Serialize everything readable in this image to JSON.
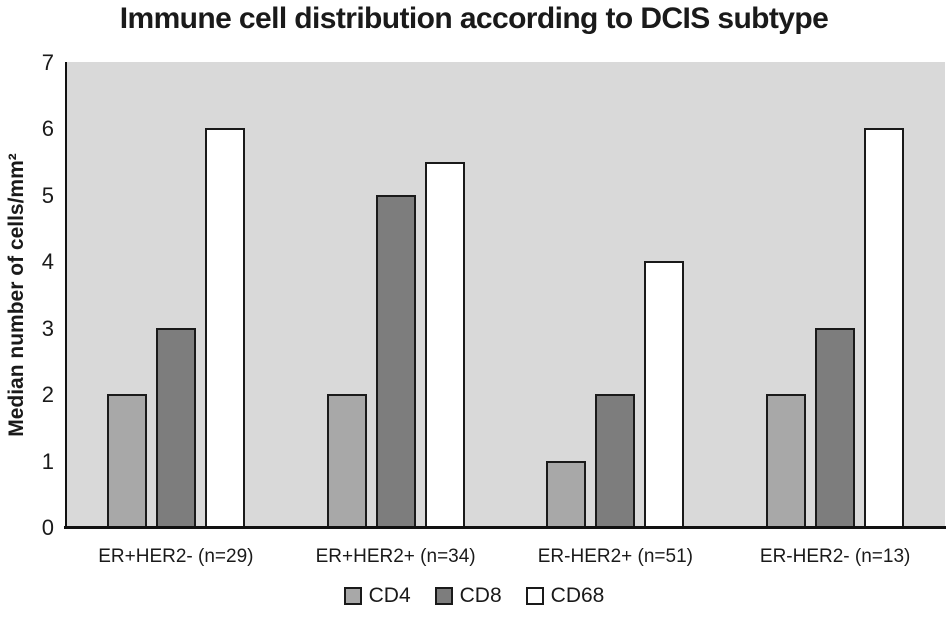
{
  "chart_data": {
    "type": "bar",
    "title": "Immune cell distribution according to DCIS subtype",
    "xlabel": "",
    "ylabel": "Median number of cells/mm²",
    "ylim": [
      0,
      7
    ],
    "yticks": [
      0,
      1,
      2,
      3,
      4,
      5,
      6,
      7
    ],
    "grid": false,
    "legend_position": "bottom-center",
    "plot_background": "#d9d9d9",
    "bar_border_color": "#1a1a1a",
    "categories": [
      "ER+HER2- (n=29)",
      "ER+HER2+ (n=34)",
      "ER-HER2+ (n=51)",
      "ER-HER2- (n=13)"
    ],
    "series": [
      {
        "name": "CD4",
        "color": "#a8a8a8",
        "values": [
          2,
          2,
          1,
          2
        ]
      },
      {
        "name": "CD8",
        "color": "#7d7d7d",
        "values": [
          3,
          5,
          2,
          3
        ]
      },
      {
        "name": "CD68",
        "color": "#ffffff",
        "values": [
          6,
          5.5,
          4,
          6
        ]
      }
    ]
  }
}
